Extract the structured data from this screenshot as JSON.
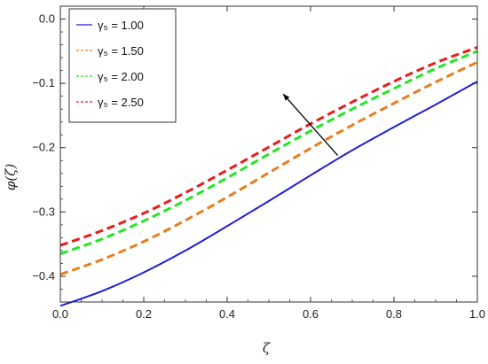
{
  "chart_data": {
    "type": "line",
    "title": "",
    "xlabel": "ζ",
    "ylabel": "φ(ζ)",
    "xlim": [
      0,
      1
    ],
    "ylim": [
      -0.44,
      0.02
    ],
    "xticks": [
      0.0,
      0.2,
      0.4,
      0.6,
      0.8,
      1.0
    ],
    "xtick_labels": [
      "0.0",
      "0.2",
      "0.4",
      "0.6",
      "0.8",
      "1.0"
    ],
    "yticks": [
      0.0,
      -0.1,
      -0.2,
      -0.3,
      -0.4
    ],
    "ytick_labels": [
      "0.0",
      "−0.1",
      "−0.2",
      "−0.3",
      "−0.4"
    ],
    "grid": false,
    "legend_position": "top-left",
    "x": [
      0.0,
      0.1,
      0.2,
      0.3,
      0.4,
      0.5,
      0.6,
      0.7,
      0.8,
      0.9,
      1.0
    ],
    "series": [
      {
        "name": "γ₅ = 1.00",
        "color": "#1f1fd6",
        "dash": "solid",
        "values": [
          -0.446,
          -0.423,
          -0.394,
          -0.36,
          -0.322,
          -0.283,
          -0.243,
          -0.204,
          -0.168,
          -0.133,
          -0.097
        ]
      },
      {
        "name": "γ₅ = 1.50",
        "color": "#e87d1e",
        "dash": "dashed",
        "values": [
          -0.397,
          -0.374,
          -0.346,
          -0.313,
          -0.277,
          -0.239,
          -0.201,
          -0.165,
          -0.131,
          -0.098,
          -0.067
        ]
      },
      {
        "name": "γ₅ = 2.00",
        "color": "#22e622",
        "dash": "dashed",
        "values": [
          -0.365,
          -0.342,
          -0.314,
          -0.282,
          -0.247,
          -0.21,
          -0.174,
          -0.14,
          -0.108,
          -0.077,
          -0.05
        ]
      },
      {
        "name": "γ₅ = 2.50",
        "color": "#e81c1c",
        "dash": "dashed",
        "values": [
          -0.352,
          -0.329,
          -0.302,
          -0.27,
          -0.235,
          -0.199,
          -0.163,
          -0.129,
          -0.097,
          -0.068,
          -0.044
        ]
      }
    ],
    "annotations": [
      {
        "type": "arrow",
        "from": [
          0.665,
          -0.212
        ],
        "to": [
          0.535,
          -0.117
        ],
        "color": "#000000"
      }
    ]
  }
}
